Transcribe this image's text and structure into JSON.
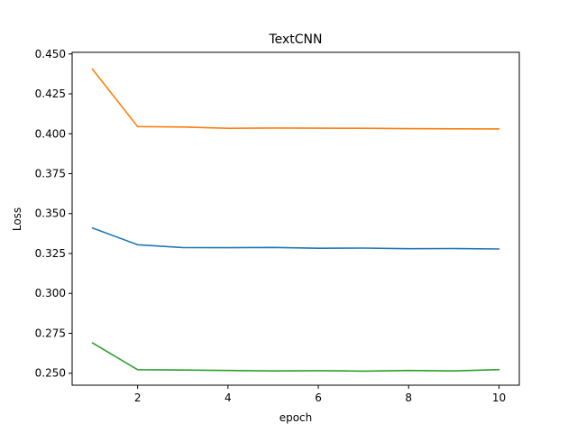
{
  "chart_data": {
    "type": "line",
    "title": "TextCNN",
    "xlabel": "epoch",
    "ylabel": "Loss",
    "x": [
      1,
      2,
      3,
      4,
      5,
      6,
      7,
      8,
      9,
      10
    ],
    "xlim": [
      0.55,
      10.45
    ],
    "ylim": [
      0.2425,
      0.451
    ],
    "xticks": [
      2,
      4,
      6,
      8,
      10
    ],
    "xtick_labels": [
      "2",
      "4",
      "6",
      "8",
      "10"
    ],
    "yticks": [
      0.25,
      0.275,
      0.3,
      0.325,
      0.35,
      0.375,
      0.4,
      0.425,
      0.45
    ],
    "ytick_labels": [
      "0.250",
      "0.275",
      "0.300",
      "0.325",
      "0.350",
      "0.375",
      "0.400",
      "0.425",
      "0.450"
    ],
    "grid": false,
    "series": [
      {
        "color": "#1f77b4",
        "values": [
          0.341,
          0.3305,
          0.3287,
          0.3286,
          0.3288,
          0.3283,
          0.3284,
          0.328,
          0.3281,
          0.3278
        ]
      },
      {
        "color": "#ff7f0e",
        "values": [
          0.4405,
          0.4045,
          0.4042,
          0.4034,
          0.4036,
          0.4035,
          0.4034,
          0.4032,
          0.4031,
          0.403
        ]
      },
      {
        "color": "#2ca02c",
        "values": [
          0.269,
          0.2522,
          0.252,
          0.2517,
          0.2514,
          0.2516,
          0.2513,
          0.2517,
          0.2514,
          0.2523
        ]
      }
    ]
  }
}
